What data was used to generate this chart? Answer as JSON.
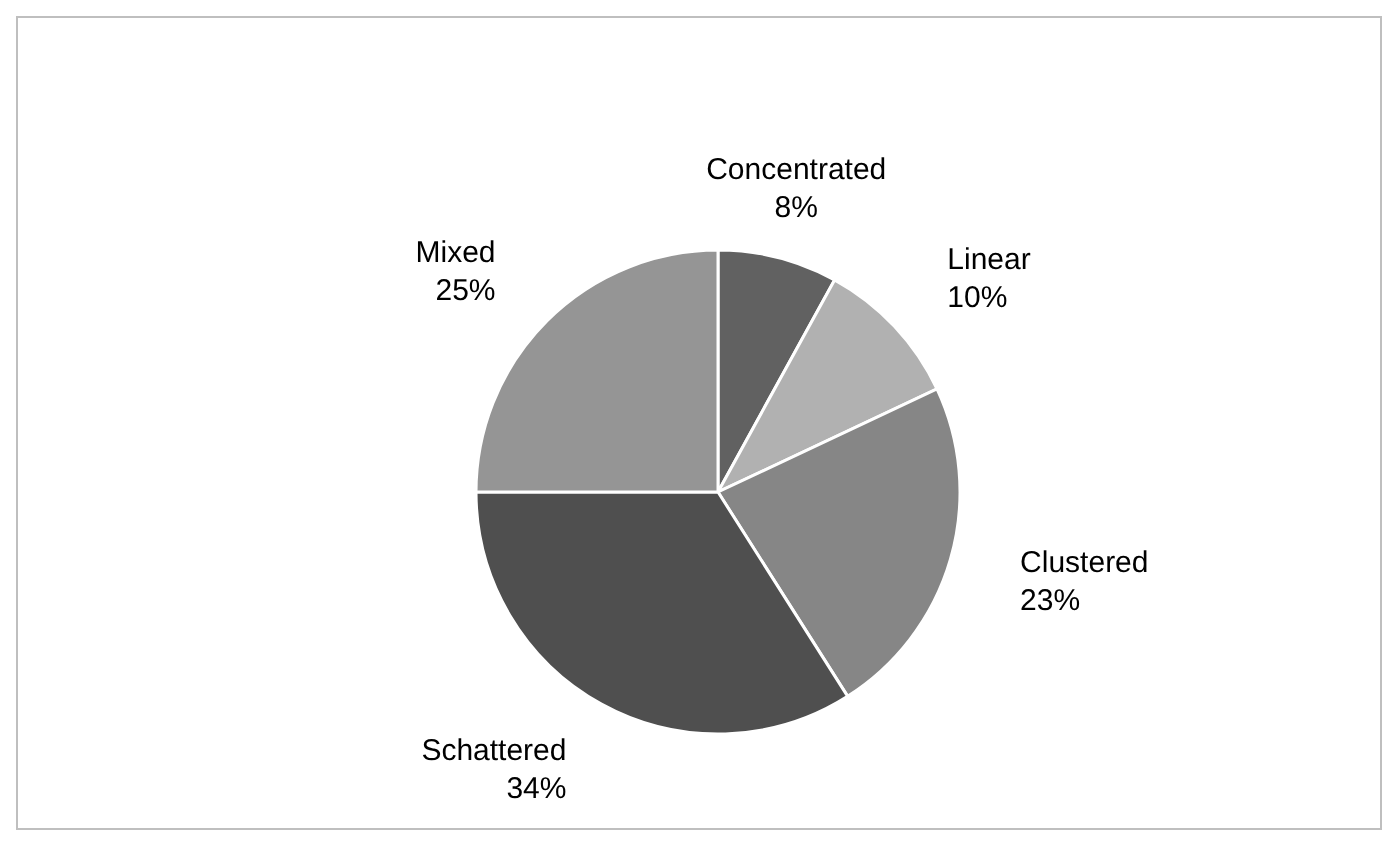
{
  "chart_data": {
    "type": "pie",
    "categories": [
      "Concentrated",
      "Linear",
      "Clustered",
      "Schattered",
      "Mixed"
    ],
    "values": [
      8,
      10,
      23,
      34,
      25
    ],
    "colors": [
      "#616161",
      "#b1b1b1",
      "#868686",
      "#4f4f4f",
      "#959595"
    ],
    "value_labels": [
      "8%",
      "10%",
      "23%",
      "34%",
      "25%"
    ]
  }
}
